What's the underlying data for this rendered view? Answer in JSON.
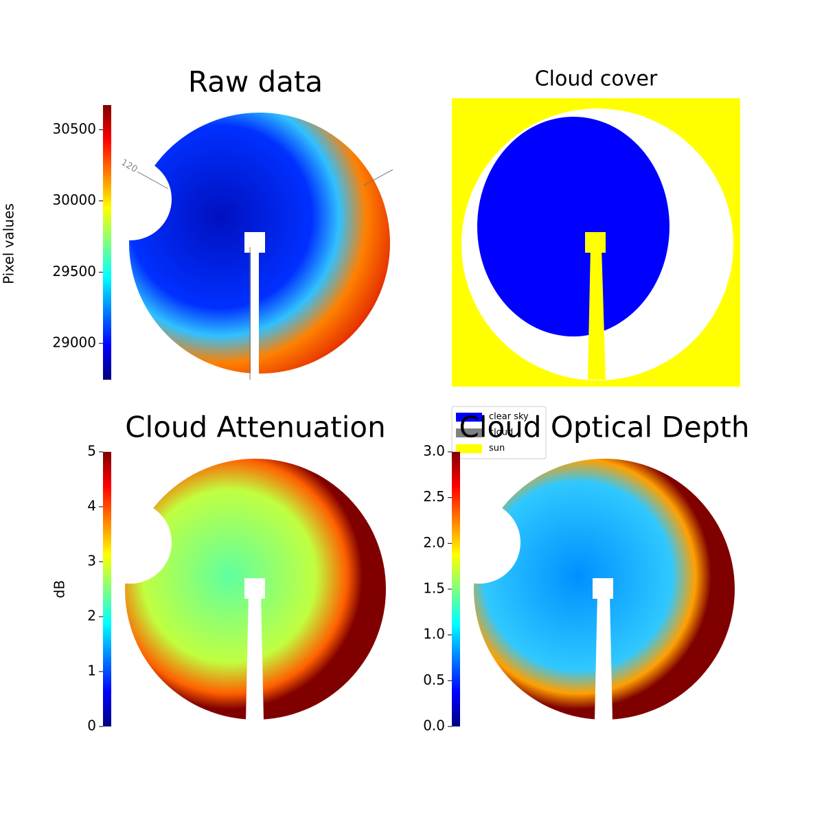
{
  "chart_data": [
    {
      "type": "image",
      "title": "Raw data",
      "annotation": "120",
      "colorbar_label": "Pixel values",
      "colormap": "jet",
      "clim": [
        28745,
        30673
      ],
      "cticks": [
        29000,
        29500,
        30000,
        30500
      ]
    },
    {
      "type": "image",
      "title": "Cloud cover",
      "legend": [
        {
          "name": "clear sky",
          "color": "#0000ff"
        },
        {
          "name": "cloud",
          "color": "#808080"
        },
        {
          "name": "sun",
          "color": "#ffff00"
        }
      ]
    },
    {
      "type": "image",
      "title": "Cloud Attenuation",
      "colorbar_label": "dB",
      "colormap": "jet",
      "clim": [
        0,
        5
      ],
      "cticks": [
        0,
        1,
        2,
        3,
        4,
        5
      ]
    },
    {
      "type": "image",
      "title": "Cloud Optical Depth",
      "colormap": "jet",
      "clim": [
        0,
        3
      ],
      "cticks": [
        {
          "value": 0,
          "label": "0.0"
        },
        0.5,
        {
          "value": 1,
          "label": "1.0"
        },
        1.5,
        {
          "value": 2,
          "label": "2.0"
        },
        2.5,
        {
          "value": 3,
          "label": "3.0"
        }
      ]
    }
  ]
}
